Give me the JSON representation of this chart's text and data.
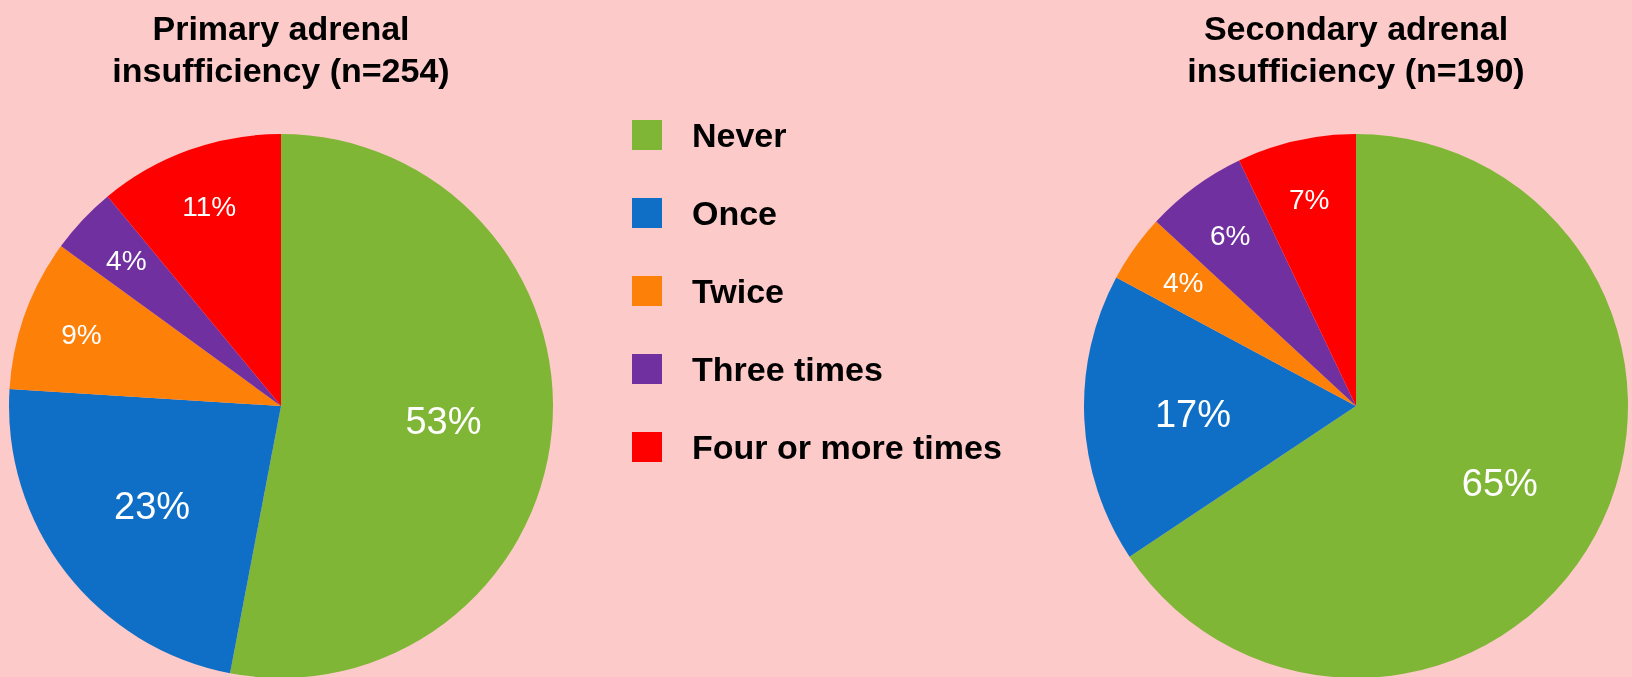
{
  "chart_data": [
    {
      "type": "pie",
      "title": "Primary adrenal insufficiency (n=254)",
      "categories": [
        "Never",
        "Once",
        "Twice",
        "Three times",
        "Four or more times"
      ],
      "values": [
        53,
        23,
        9,
        4,
        11
      ],
      "value_labels": [
        "53%",
        "23%",
        "9%",
        "4%",
        "11%"
      ],
      "colors": [
        "#80b636",
        "#0f6fc6",
        "#fd8008",
        "#7030a0",
        "#ff0000"
      ],
      "legend": "right"
    },
    {
      "type": "pie",
      "title": "Secondary adrenal insufficiency (n=190)",
      "categories": [
        null,
        null,
        null,
        null,
        null
      ],
      "values": [
        65,
        17,
        4,
        6,
        7
      ],
      "value_labels": [
        "65%",
        "17%",
        "4%",
        "6%",
        "7%"
      ],
      "colors": [
        "#80b636",
        "#0f6fc6",
        "#fd8008",
        "#7030a0",
        "#ff0000"
      ]
    }
  ]
}
